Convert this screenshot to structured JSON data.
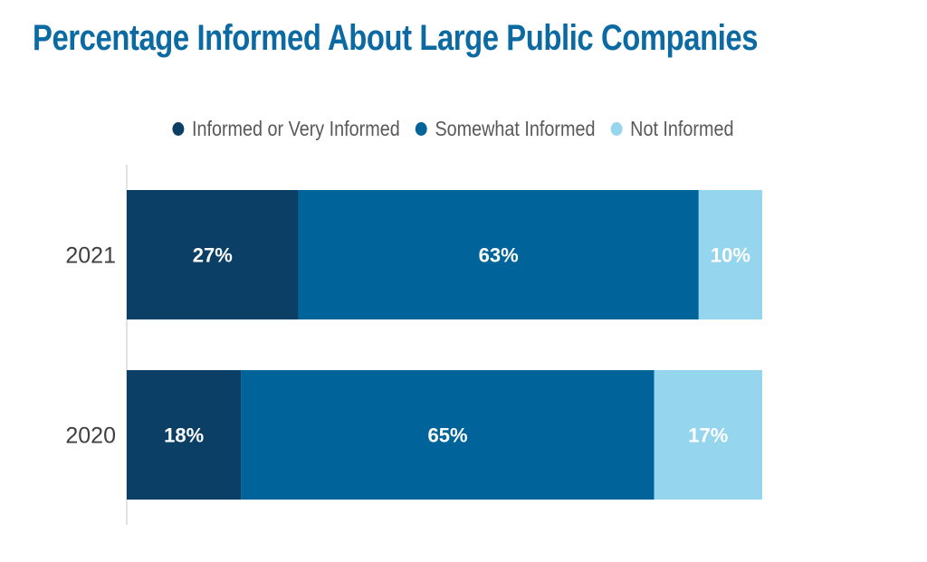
{
  "title": "Percentage Informed About Large Public Companies",
  "colors": {
    "title": "#0b6aa2",
    "axis": "#d9d9d9",
    "tick_text": "#404040",
    "legend_text": "#595959",
    "data_label": "#ffffff"
  },
  "chart_data": {
    "type": "bar",
    "orientation": "horizontal",
    "stacked": true,
    "percent_stacked": true,
    "title": "Percentage Informed About Large Public Companies",
    "legend_position": "top",
    "grid": false,
    "xlim": [
      0,
      100
    ],
    "categories": [
      "2021",
      "2020"
    ],
    "series": [
      {
        "name": "Informed or Very Informed",
        "color": "#0c3f66",
        "values": [
          27,
          18
        ],
        "labels": [
          "27%",
          "18%"
        ]
      },
      {
        "name": "Somewhat Informed",
        "color": "#006399",
        "values": [
          63,
          65
        ],
        "labels": [
          "63%",
          "65%"
        ]
      },
      {
        "name": "Not Informed",
        "color": "#95d5ee",
        "values": [
          10,
          17
        ],
        "labels": [
          "10%",
          "17%"
        ]
      }
    ]
  }
}
